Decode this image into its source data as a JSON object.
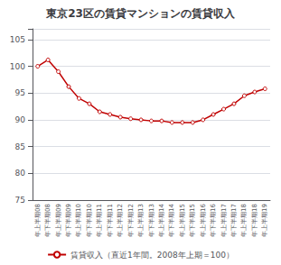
{
  "chart_data": {
    "type": "line",
    "title": "東京23区の賃貸マンションの賃貸収入",
    "categories": [
      "年上半期08",
      "年下半期08",
      "年上半期09",
      "年下半期09",
      "年上半期10",
      "年下半期10",
      "年上半期11",
      "年下半期11",
      "年上半期12",
      "年下半期12",
      "年上半期13",
      "年下半期13",
      "年上半期14",
      "年下半期14",
      "年上半期15",
      "年下半期15",
      "年上半期16",
      "年下半期16",
      "年上半期17",
      "年下半期17",
      "年上半期18",
      "年下半期18",
      "年上半期19"
    ],
    "series": [
      {
        "name": "賃貸収入（直近1年間。2008年上期＝100）",
        "color": "#c00000",
        "marker": "circle",
        "values": [
          100.0,
          101.2,
          99.0,
          96.2,
          94.0,
          93.0,
          91.5,
          91.0,
          90.5,
          90.2,
          90.0,
          89.8,
          89.8,
          89.5,
          89.5,
          89.5,
          90.0,
          91.0,
          92.0,
          93.0,
          94.5,
          95.2,
          95.8
        ]
      }
    ],
    "ylim": [
      75,
      107
    ],
    "yticks": [
      75,
      80,
      85,
      90,
      95,
      100,
      105
    ],
    "grid": true,
    "legend": "bottom"
  }
}
